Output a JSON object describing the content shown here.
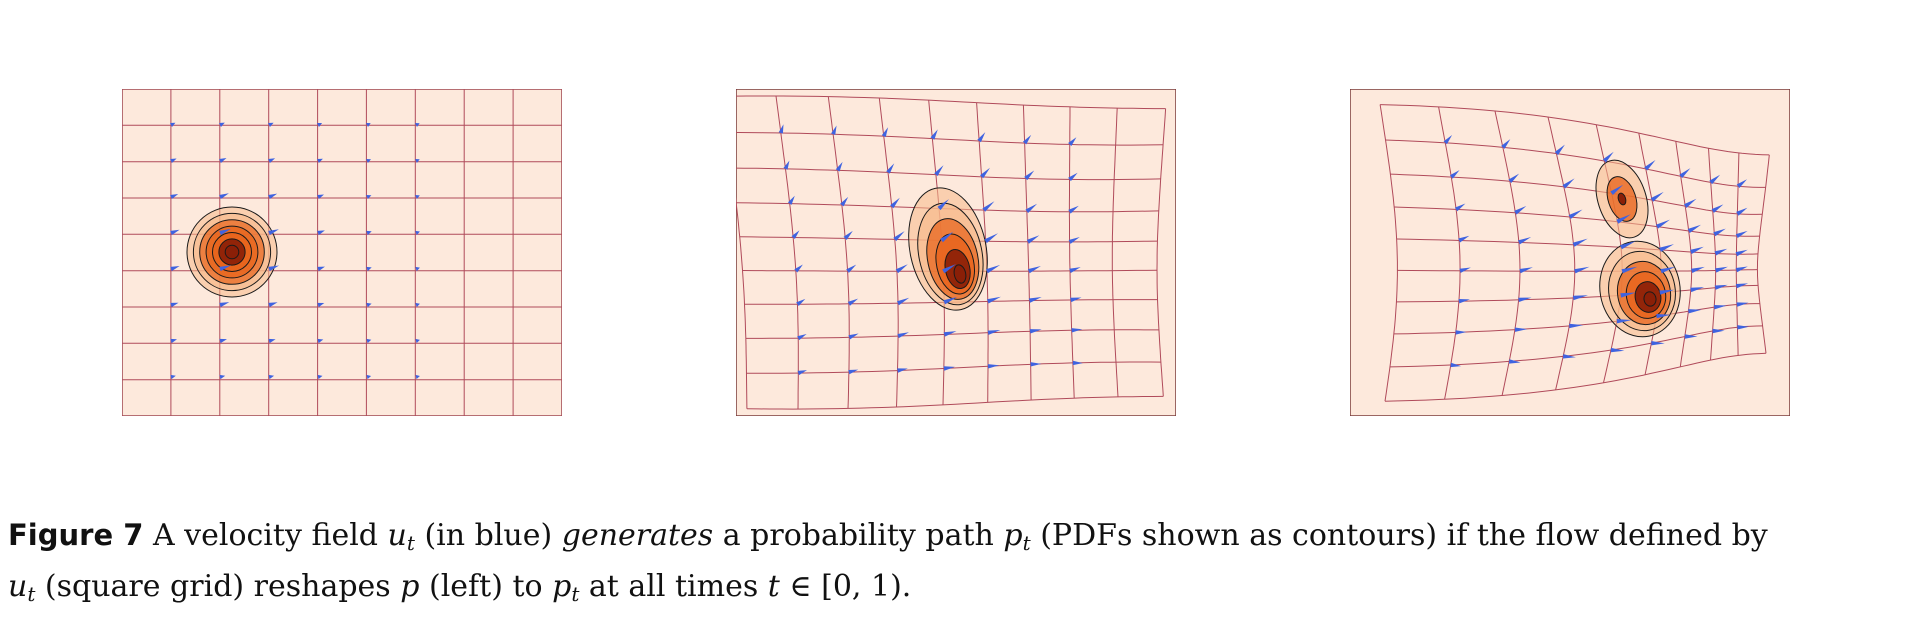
{
  "figure": {
    "panels": [
      {
        "id": "left"
      },
      {
        "id": "middle"
      },
      {
        "id": "right"
      }
    ],
    "colors": {
      "background": "#fde9dc",
      "grid": "#b04a5a",
      "arrows": "#3f63e0",
      "density_dark": "#8a1f07",
      "density_mid": "#e8641c",
      "density_light": "#f7b98a",
      "contour": "#1a1a1a"
    },
    "caption": {
      "label": "Figure 7",
      "t1": " A velocity field ",
      "u": "u",
      "t_sub": "t",
      "t2": " (in blue) ",
      "generates": "generates",
      "t3": " a probability path ",
      "p": "p",
      "t4": " (PDFs shown as contours) if the flow defined by ",
      "t5": " (square grid) reshapes ",
      "t6": " (left) to ",
      "t7": " at all times ",
      "t_var": "t",
      "t8": " ∈ [0, 1)."
    }
  }
}
